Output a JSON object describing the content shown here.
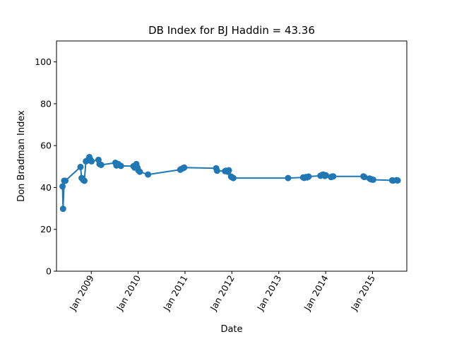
{
  "chart_data": {
    "type": "line",
    "title": "DB Index for BJ Haddin = 43.36",
    "xlabel": "Date",
    "ylabel": "Don Bradman Index",
    "ylim": [
      0,
      110
    ],
    "xlim": [
      "2008-04-05",
      "2015-09-25"
    ],
    "yticks": [
      0,
      20,
      40,
      60,
      80,
      100
    ],
    "xticks": [
      {
        "date": "2009-01-01",
        "label": "Jan 2009"
      },
      {
        "date": "2010-01-01",
        "label": "Jan 2010"
      },
      {
        "date": "2011-01-01",
        "label": "Jan 2011"
      },
      {
        "date": "2012-01-01",
        "label": "Jan 2012"
      },
      {
        "date": "2013-01-01",
        "label": "Jan 2013"
      },
      {
        "date": "2014-01-01",
        "label": "Jan 2014"
      },
      {
        "date": "2015-01-01",
        "label": "Jan 2015"
      }
    ],
    "grid": false,
    "color": "#1f77b4",
    "series": [
      {
        "x": [
          "2008-05-22",
          "2008-05-26",
          "2008-06-04",
          "2008-06-13",
          "2008-10-09",
          "2008-10-18",
          "2008-11-01",
          "2008-11-08",
          "2008-11-20",
          "2008-11-28",
          "2008-12-17",
          "2008-12-26",
          "2009-01-03",
          "2009-02-26",
          "2009-03-06",
          "2009-03-19",
          "2009-07-08",
          "2009-07-16",
          "2009-07-30",
          "2009-08-20",
          "2009-11-26",
          "2009-12-04",
          "2009-12-18",
          "2009-12-26",
          "2010-01-03",
          "2010-01-14",
          "2010-03-19",
          "2010-11-25",
          "2010-12-03",
          "2010-12-16",
          "2010-12-26",
          "2011-09-01",
          "2011-09-08",
          "2011-11-09",
          "2011-11-17",
          "2011-12-01",
          "2011-12-09",
          "2011-12-26",
          "2012-01-03",
          "2012-01-13",
          "2013-03-14",
          "2013-07-10",
          "2013-07-18",
          "2013-08-01",
          "2013-08-09",
          "2013-08-21",
          "2013-11-21",
          "2013-12-05",
          "2013-12-13",
          "2013-12-26",
          "2014-01-03",
          "2014-02-12",
          "2014-02-20",
          "2014-03-01",
          "2014-10-22",
          "2014-10-30",
          "2014-12-09",
          "2014-12-17",
          "2014-12-26",
          "2015-01-06",
          "2015-06-03",
          "2015-06-11",
          "2015-07-08",
          "2015-07-16"
        ],
        "y": [
          40.5,
          29.8,
          43.2,
          43.2,
          49.8,
          44.5,
          43.5,
          43.2,
          52.5,
          52.8,
          54.5,
          53.2,
          52.5,
          53.2,
          51.2,
          50.8,
          51.8,
          50.5,
          51.2,
          50.3,
          50.2,
          49.5,
          51.2,
          49.5,
          48.2,
          47.5,
          46.2,
          48.5,
          48.8,
          49.2,
          49.5,
          49.2,
          48.0,
          47.8,
          48.0,
          47.5,
          48.2,
          45.2,
          44.8,
          44.5,
          44.5,
          44.8,
          44.6,
          45.0,
          44.8,
          45.2,
          45.6,
          46.0,
          46.2,
          45.5,
          45.8,
          45.0,
          45.2,
          45.3,
          45.3,
          45.0,
          44.3,
          44.0,
          43.8,
          43.7,
          43.4,
          43.3,
          43.5,
          43.36
        ]
      }
    ]
  }
}
